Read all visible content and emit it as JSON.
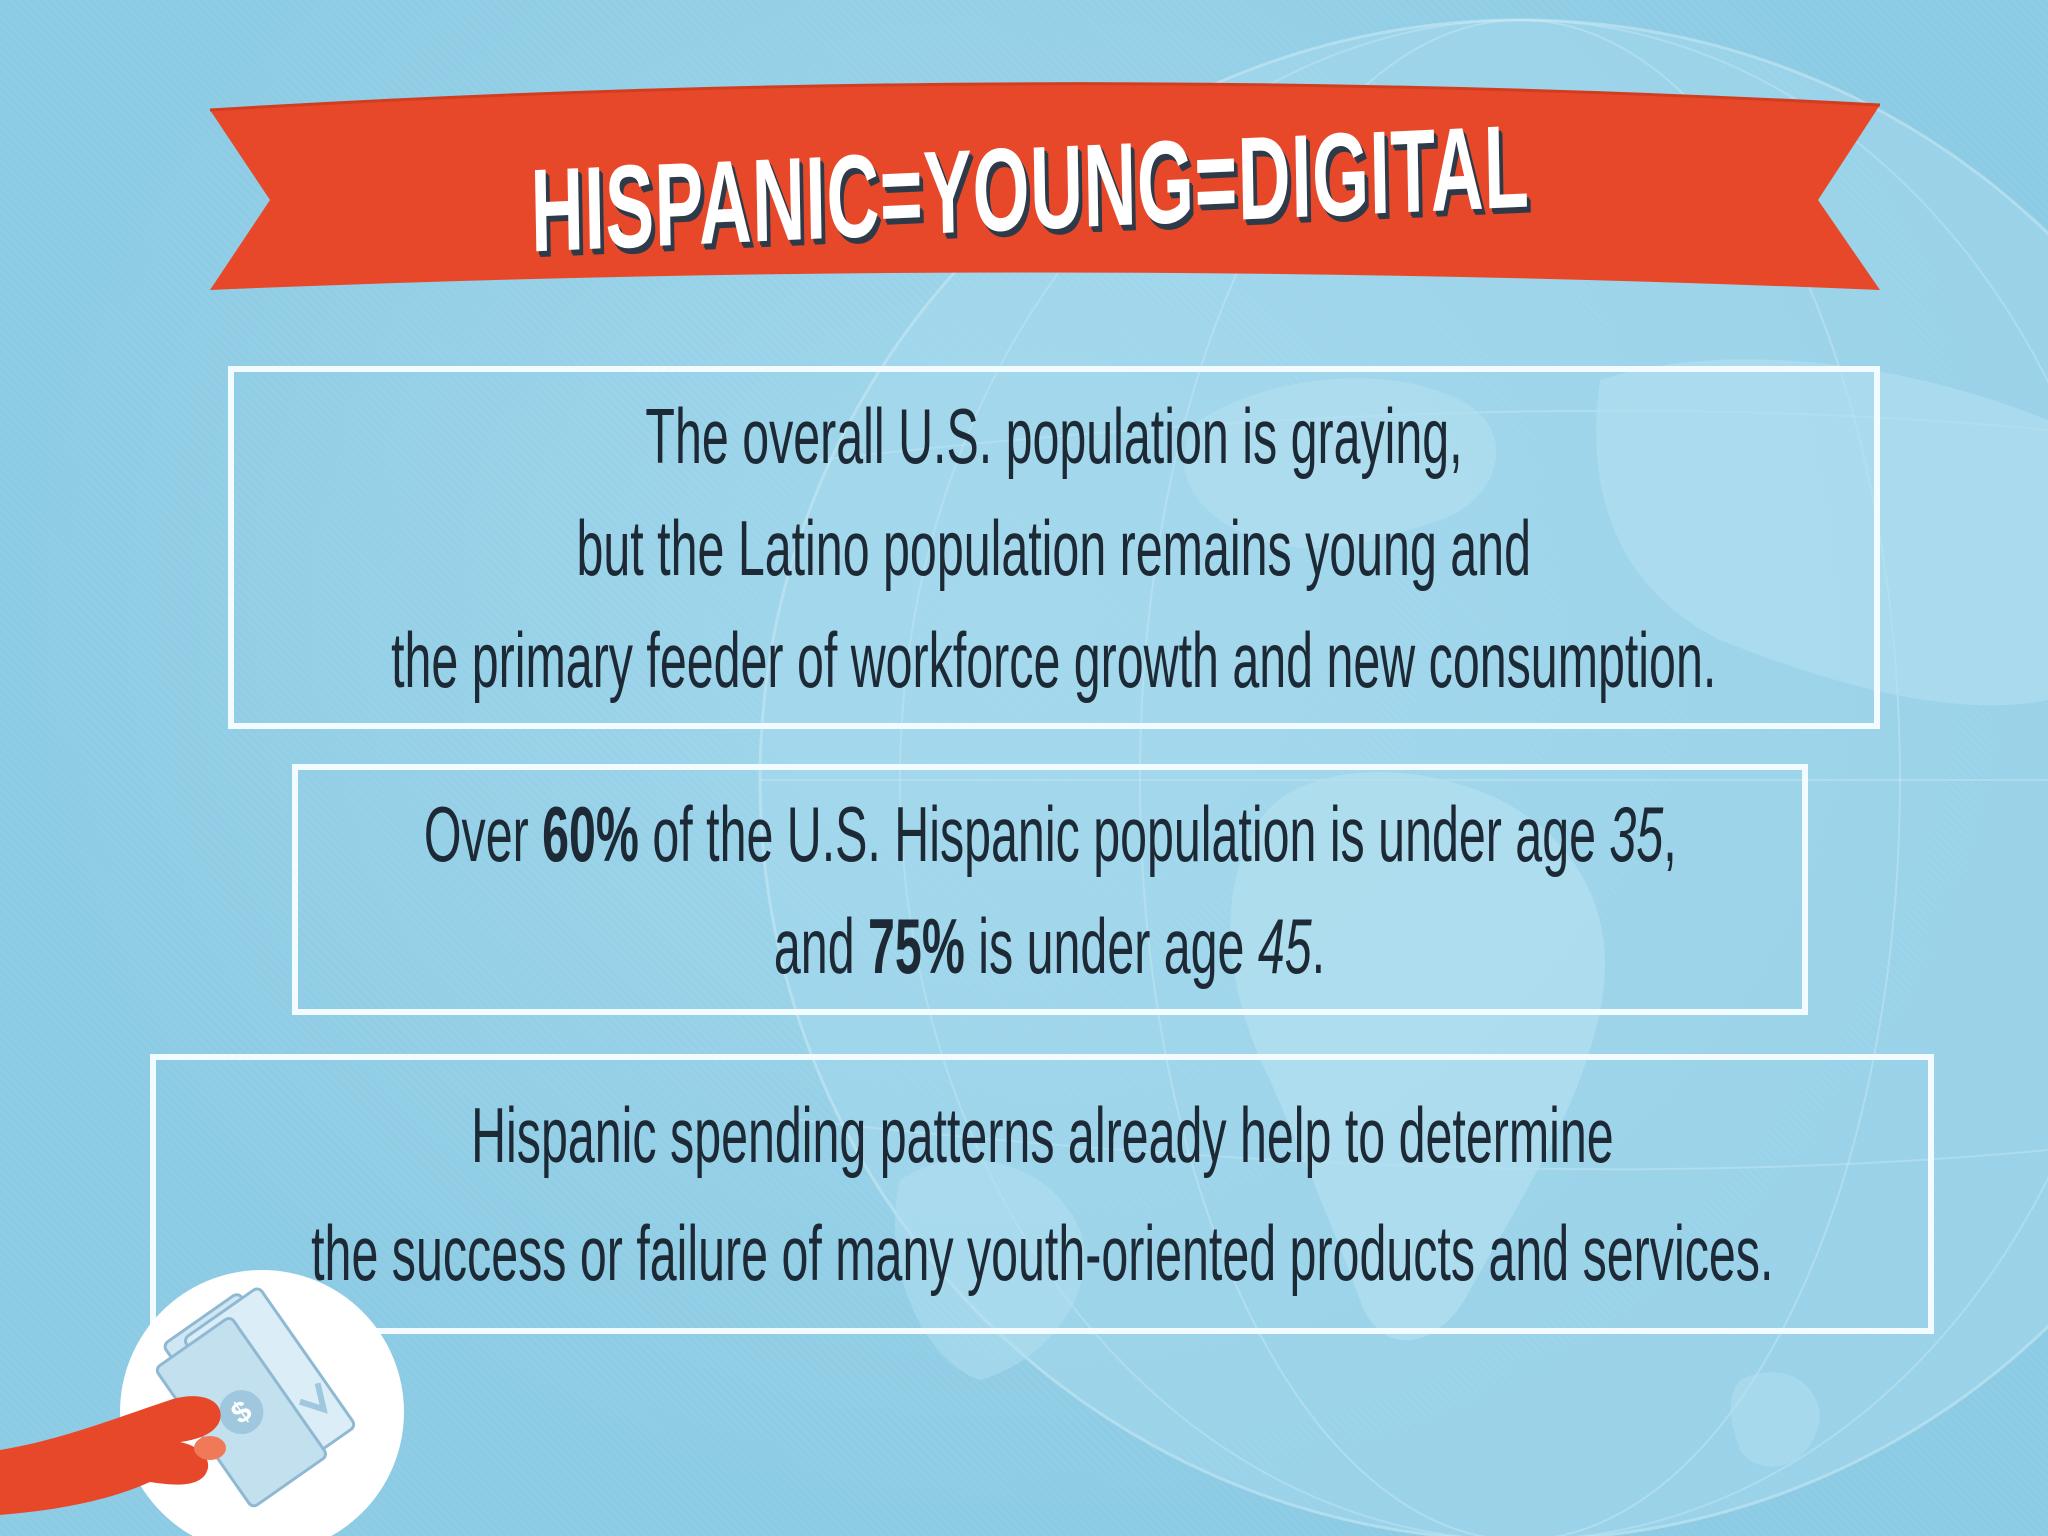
{
  "banner": {
    "title": "HISPANIC=YOUNG=DIGITAL",
    "color": "#e8482a"
  },
  "box1": {
    "lines": [
      "The overall U.S. population is graying,",
      "but the Latino population remains young and",
      "the primary feeder of workforce growth and new consumption."
    ]
  },
  "box2": {
    "line1": {
      "pre": "Over ",
      "stat": "60%",
      "mid": " of the U.S. Hispanic population is under age ",
      "age": "35",
      "post": ","
    },
    "line2": {
      "pre": "and ",
      "stat": "75%",
      "mid": " is under age ",
      "age": "45",
      "post": "."
    }
  },
  "box3": {
    "lines": [
      "Hispanic spending patterns already help to determine",
      "the success or failure of many youth-oriented products and services."
    ]
  },
  "icons": {
    "globe": "globe-icon",
    "money": "hand-holding-money-icon"
  },
  "colors": {
    "background": "#8ccbe4",
    "accent": "#e8482a",
    "text": "#1d2a36",
    "box_border": "#f2fbff"
  }
}
